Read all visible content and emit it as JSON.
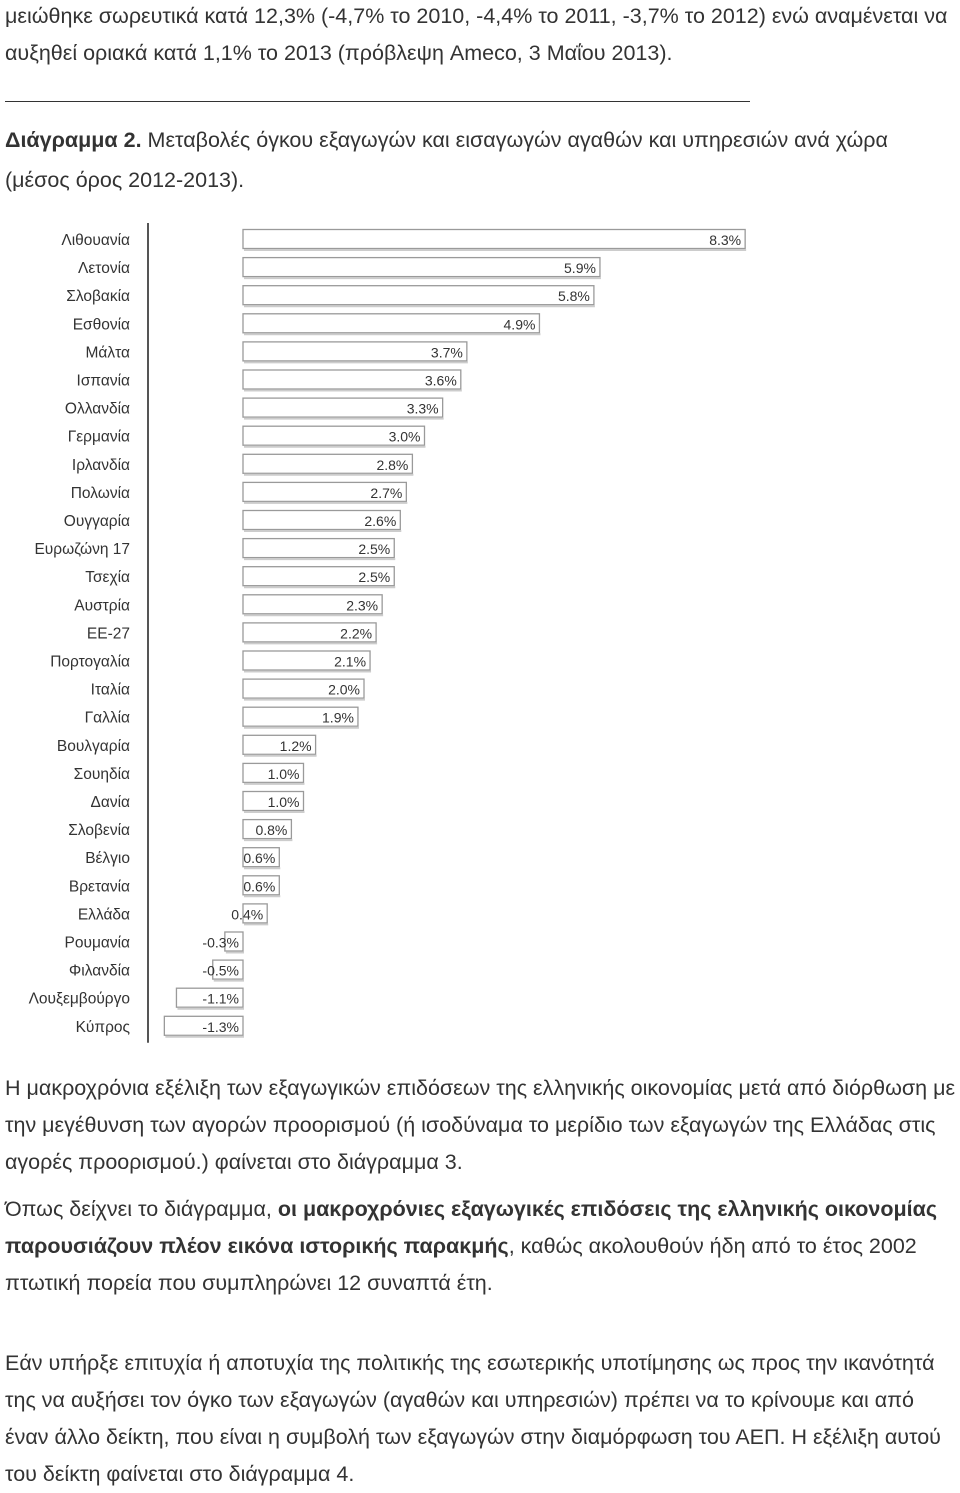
{
  "intro": {
    "text": "μειώθηκε σωρευτικά κατά 12,3% (-4,7% το 2010, -4,4% το 2011, -3,7% το 2012) ενώ αναμένεται να αυξηθεί οριακά κατά 1,1% το 2013 (πρόβλεψη Ameco, 3 Μαΐου 2013)."
  },
  "caption": {
    "label": "Διάγραμμα 2.",
    "text": " Μεταβολές όγκου εξαγωγών και εισαγωγών αγαθών και υπηρεσιών ανά χώρα (μέσος όρος 2012-2013)."
  },
  "chart_data": {
    "type": "bar",
    "orientation": "horizontal",
    "title": "",
    "xlabel": "",
    "ylabel": "",
    "categories": [
      "Λιθουανία",
      "Λετονία",
      "Σλοβακία",
      "Εσθονία",
      "Μάλτα",
      "Ισπανία",
      "Ολλανδία",
      "Γερμανία",
      "Ιρλανδία",
      "Πολωνία",
      "Ουγγαρία",
      "Ευρωζώνη 17",
      "Τσεχία",
      "Αυστρία",
      "ΕΕ-27",
      "Πορτογαλία",
      "Ιταλία",
      "Γαλλία",
      "Βουλγαρία",
      "Σουηδία",
      "Δανία",
      "Σλοβενία",
      "Βέλγιο",
      "Βρετανία",
      "Ελλάδα",
      "Ρουμανία",
      "Φιλανδία",
      "Λουξεμβούργο",
      "Κύπρος"
    ],
    "values": [
      8.3,
      5.9,
      5.8,
      4.9,
      3.7,
      3.6,
      3.3,
      3.0,
      2.8,
      2.7,
      2.6,
      2.5,
      2.5,
      2.3,
      2.2,
      2.1,
      2.0,
      1.9,
      1.2,
      1.0,
      1.0,
      0.8,
      0.6,
      0.6,
      0.4,
      -0.3,
      -0.5,
      -1.1,
      -1.3
    ],
    "labels": [
      "8.3%",
      "5.9%",
      "5.8%",
      "4.9%",
      "3.7%",
      "3.6%",
      "3.3%",
      "3.0%",
      "2.8%",
      "2.7%",
      "2.6%",
      "2.5%",
      "2.5%",
      "2.3%",
      "2.2%",
      "2.1%",
      "2.0%",
      "1.9%",
      "1.2%",
      "1.0%",
      "1.0%",
      "0.8%",
      "0.6%",
      "0.6%",
      "0.4%",
      "-0.3%",
      "-0.5%",
      "-1.1%",
      "-1.3%"
    ],
    "xlim": [
      -1.3,
      8.3
    ],
    "grid": false,
    "colors": {
      "bar_fill": "#ffffff",
      "bar_stroke": "#9a9a9a",
      "text": "#333333",
      "axis": "#555555"
    }
  },
  "paragraphs": {
    "p1": "Η μακροχρόνια εξέλιξη των εξαγωγικών επιδόσεων της ελληνικής οικονομίας μετά από διόρθωση με την μεγέθυνση των αγορών προορισμού (ή ισοδύναμα το μερίδιο των εξαγωγών της Ελλάδας στις αγορές προορισμού.) φαίνεται στο διάγραμμα 3.",
    "p2_start": "Όπως δείχνει το διάγραμμα, ",
    "p2_bold": "οι μακροχρόνιες εξαγωγικές επιδόσεις της ελληνικής οικονομίας παρουσιάζουν πλέον εικόνα ιστορικής παρακμής",
    "p2_end": ", καθώς ακολουθούν ήδη από το έτος 2002 πτωτική πορεία που συμπληρώνει 12 συναπτά έτη.",
    "p3": "Εάν υπήρξε επιτυχία ή αποτυχία της πολιτικής της εσωτερικής υποτίμησης ως προς την ικανότητά της να αυξήσει τον όγκο των εξαγωγών (αγαθών και υπηρεσιών) πρέπει να το κρίνουμε και από έναν άλλο δείκτη, που είναι η συμβολή των εξαγωγών στην διαμόρφωση του ΑΕΠ. Η εξέλιξη αυτού του δείκτη φαίνεται στο διάγραμμα 4."
  }
}
